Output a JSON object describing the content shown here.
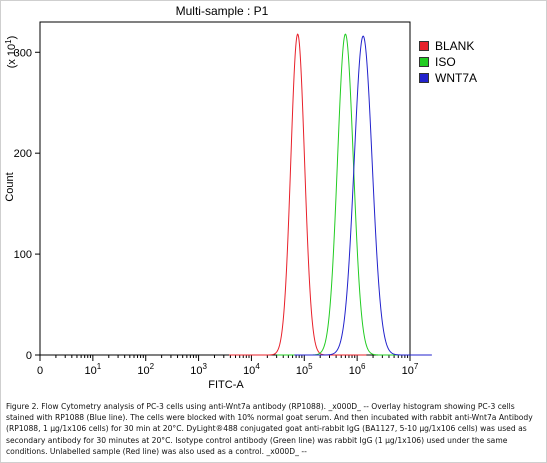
{
  "chart_data": {
    "type": "area",
    "title": "Multi-sample : P1",
    "xlabel": "FITC-A",
    "ylabel": "Count",
    "y_multiplier_label": "(x 10",
    "y_multiplier_exp": "1",
    "x_scale": "log",
    "xlim": [
      1,
      10000000
    ],
    "ylim": [
      0,
      330
    ],
    "x_ticks": [
      {
        "base": "0",
        "exp": ""
      },
      {
        "base": "10",
        "exp": "1"
      },
      {
        "base": "10",
        "exp": "2"
      },
      {
        "base": "10",
        "exp": "3"
      },
      {
        "base": "10",
        "exp": "4"
      },
      {
        "base": "10",
        "exp": "5"
      },
      {
        "base": "10",
        "exp": "6"
      },
      {
        "base": "10",
        "exp": "7"
      }
    ],
    "y_ticks": [
      "0",
      "100",
      "200",
      "300"
    ],
    "y_tick_values": [
      0,
      100,
      200,
      300
    ],
    "legend_position": "top-right",
    "series": [
      {
        "name": "BLANK",
        "color": "#e8202a",
        "peak_x": 75000,
        "peak_y": 318,
        "spread": 0.13
      },
      {
        "name": "ISO",
        "color": "#22cc22",
        "peak_x": 600000,
        "peak_y": 318,
        "spread": 0.15
      },
      {
        "name": "WNT7A",
        "color": "#2222cc",
        "peak_x": 1300000,
        "peak_y": 316,
        "spread": 0.17
      }
    ]
  },
  "caption": "Figure 2. Flow Cytometry analysis of PC-3 cells using anti-Wnt7a antibody (RP1088). _x000D_ -- Overlay histogram showing PC-3 cells stained with RP1088 (Blue line). The cells were blocked with 10% normal goat serum. And then incubated with rabbit anti-Wnt7a Antibody (RP1088, 1 µg/1x106 cells) for 30 min at 20°C. DyLight®488 conjugated goat anti-rabbit IgG (BA1127, 5-10 µg/1x106 cells) was used as secondary antibody for 30 minutes at 20°C. Isotype control antibody (Green line) was rabbit IgG (1 µg/1x106) used under the same conditions. Unlabelled sample (Red line) was also used as a control. _x000D_ --"
}
